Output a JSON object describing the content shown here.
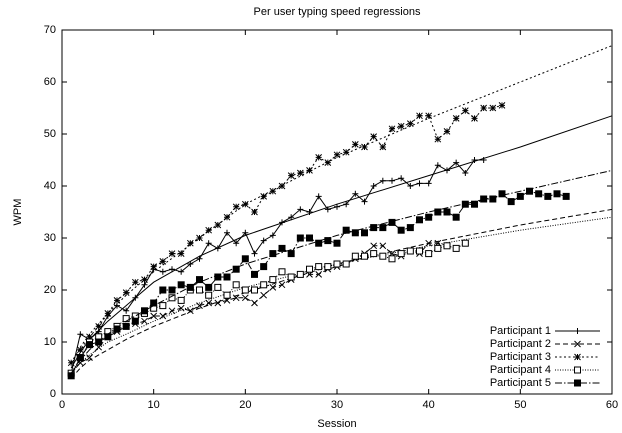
{
  "chart_data": {
    "type": "line",
    "title": "Per user typing speed regressions",
    "xlabel": "Session",
    "ylabel": "WPM",
    "xlim": [
      0,
      60
    ],
    "xticks": [
      0,
      10,
      20,
      30,
      40,
      50,
      60
    ],
    "ylim": [
      0,
      70
    ],
    "yticks": [
      0,
      10,
      20,
      30,
      40,
      50,
      60,
      70
    ],
    "grid": false,
    "legend": "bottom-right",
    "x": [
      1,
      2,
      3,
      4,
      5,
      6,
      7,
      8,
      9,
      10,
      11,
      12,
      13,
      14,
      15,
      16,
      17,
      18,
      19,
      20,
      21,
      22,
      23,
      24,
      25,
      26,
      27,
      28,
      29,
      30,
      31,
      32,
      33,
      34,
      35,
      36,
      37,
      38,
      39,
      40,
      41,
      42,
      43,
      44,
      45,
      46,
      47,
      48,
      49,
      50,
      51,
      52,
      53,
      54,
      55
    ],
    "fit_x": [
      1,
      2,
      3,
      5,
      7,
      10,
      15,
      20,
      30,
      40,
      50,
      60
    ],
    "series": [
      {
        "name": "Participant 1",
        "color": "#000000",
        "marker": "plus",
        "dash": "solid",
        "values": [
          4,
          11.5,
          10.5,
          12,
          15,
          17,
          16,
          18.5,
          21,
          24,
          23.5,
          24,
          23.5,
          25,
          26,
          29,
          28,
          31,
          29,
          31,
          27,
          29.5,
          30.5,
          33,
          34,
          35.5,
          35,
          38,
          35.5,
          36,
          36.5,
          38.5,
          37,
          40,
          41,
          41,
          41.5,
          40,
          40.5,
          40.5,
          44,
          43,
          44.5,
          42.5,
          45,
          45,
          null,
          null,
          null,
          null,
          null,
          null,
          null,
          null,
          null
        ],
        "fit": [
          5,
          8,
          10.5,
          14,
          17,
          21.5,
          26.5,
          30.5,
          36.5,
          42,
          47.5,
          53.5
        ]
      },
      {
        "name": "Participant 2",
        "color": "#000000",
        "marker": "cross",
        "dash": "dashed",
        "values": [
          4,
          6,
          7,
          9,
          11,
          12,
          13,
          13.5,
          14,
          15,
          15,
          16,
          16.5,
          16,
          17,
          17.5,
          17.5,
          18,
          18.5,
          18.5,
          17.5,
          19,
          20.5,
          21,
          22,
          23,
          23,
          23,
          24,
          24.5,
          25,
          26,
          27,
          28.5,
          28.5,
          27,
          26.5,
          27.5,
          27,
          29,
          29,
          28.5,
          null,
          null,
          null,
          null,
          null,
          null,
          null,
          null,
          null,
          null,
          null,
          null,
          null
        ],
        "fit": [
          3,
          5,
          6.5,
          8.5,
          10.5,
          13,
          16.5,
          19.5,
          25,
          29,
          32.5,
          35.5
        ]
      },
      {
        "name": "Participant 3",
        "color": "#000000",
        "marker": "asterisk",
        "dash": "dotted",
        "values": [
          6,
          8.5,
          11,
          13,
          15.5,
          18,
          19.5,
          21.5,
          22,
          24.5,
          25.5,
          27,
          27,
          29,
          30,
          31.5,
          32.5,
          34,
          36,
          36.5,
          35,
          38,
          39,
          40,
          42,
          42.5,
          43,
          45.5,
          44.5,
          46,
          46.5,
          48,
          47.5,
          49.5,
          47.5,
          51,
          51.5,
          52,
          53.5,
          53.5,
          49,
          50.5,
          53,
          54.5,
          53,
          55,
          55,
          55.5,
          null,
          null,
          null,
          null,
          null,
          null,
          null
        ],
        "fit": [
          6,
          9,
          11.5,
          15.5,
          19,
          23.5,
          30,
          36.5,
          45.5,
          53,
          60,
          67
        ]
      },
      {
        "name": "Participant 4",
        "color": "#000000",
        "marker": "open-square",
        "dash": "fine-dotted",
        "values": [
          4,
          7,
          10,
          11,
          12,
          13,
          14.5,
          15,
          15.5,
          16.5,
          17,
          18.5,
          18,
          20,
          20,
          19,
          20.5,
          19,
          21,
          20,
          20,
          21,
          22,
          23.5,
          22.5,
          23,
          24,
          24.5,
          24.5,
          25,
          25,
          26.5,
          26.5,
          27,
          26.5,
          26,
          27,
          27.5,
          27.5,
          27,
          28,
          28.5,
          28,
          29,
          null,
          null,
          null,
          null,
          null,
          null,
          null,
          null,
          null,
          null,
          null
        ],
        "fit": [
          4,
          6,
          7.5,
          10,
          11.5,
          14,
          17.5,
          20.5,
          25,
          28.5,
          31.5,
          34
        ]
      },
      {
        "name": "Participant 5",
        "color": "#000000",
        "marker": "filled-square",
        "dash": "dash-dot",
        "values": [
          3.5,
          7,
          9.5,
          10,
          11,
          12.5,
          13,
          14,
          16,
          17.5,
          20,
          20,
          21,
          20.5,
          22,
          20.5,
          22.5,
          22.5,
          24,
          26,
          23,
          24.5,
          27,
          28,
          27,
          30,
          30,
          29,
          29.5,
          29,
          31.5,
          31,
          31,
          32,
          32,
          33,
          31.5,
          32,
          33.5,
          34,
          35,
          35,
          34,
          36.5,
          36.5,
          37.5,
          37.5,
          38.5,
          37,
          38,
          39,
          38.5,
          38,
          38.5,
          38
        ],
        "fit": [
          4,
          6.5,
          8.5,
          11.5,
          14,
          17,
          21.5,
          25,
          30.5,
          35,
          39,
          43
        ]
      }
    ]
  }
}
